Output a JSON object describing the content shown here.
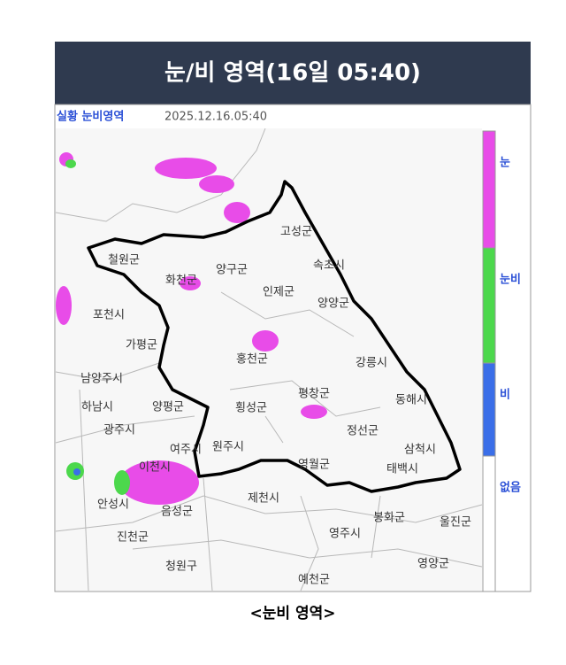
{
  "header": {
    "title": "눈/비 영역(16일 05:40)"
  },
  "map": {
    "source_label": "실황 눈비영역",
    "timestamp": "2025.12.16.05:40",
    "labels": [
      "고성군",
      "속초시",
      "철원군",
      "화천군",
      "양구군",
      "인제군",
      "양양군",
      "포천시",
      "가평군",
      "홍천군",
      "강릉시",
      "남양주시",
      "하남시",
      "양평군",
      "횡성군",
      "평창군",
      "동해시",
      "광주시",
      "정선군",
      "여주시",
      "원주시",
      "삼척시",
      "이천시",
      "영월군",
      "태백시",
      "안성시",
      "음성군",
      "제천시",
      "봉화군",
      "울진군",
      "영주시",
      "진천군",
      "영양군",
      "청원구",
      "예천군"
    ]
  },
  "legend": {
    "items": [
      {
        "label": "눈",
        "color": "#e84ce8"
      },
      {
        "label": "눈비",
        "color": "#4cd84c"
      },
      {
        "label": "비",
        "color": "#3a6ee8"
      },
      {
        "label": "없음",
        "color": "#ffffff"
      }
    ]
  },
  "caption": "<눈비 영역>"
}
